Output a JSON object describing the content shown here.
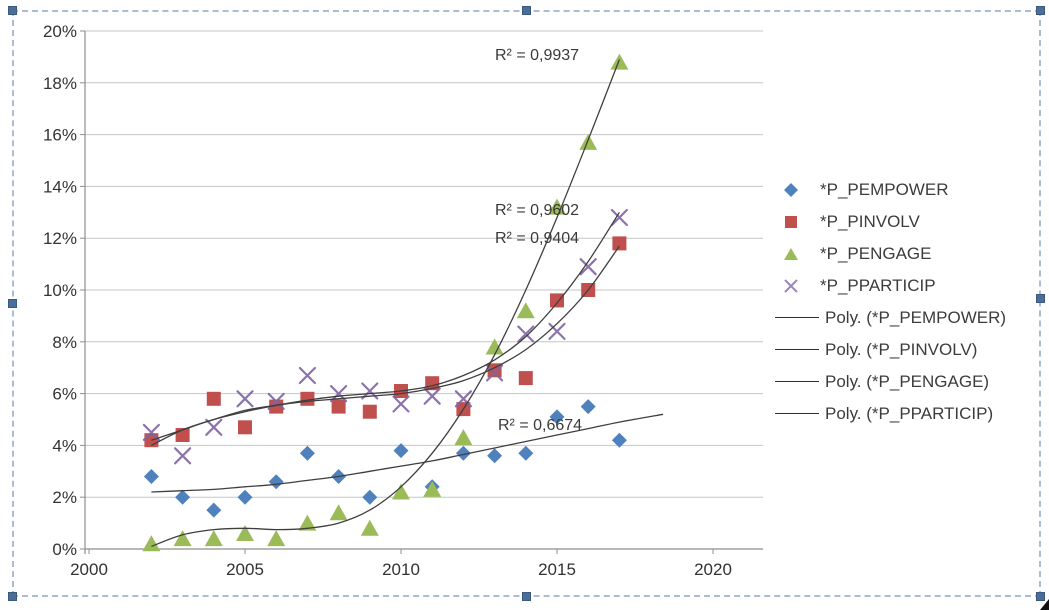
{
  "chart_data": {
    "type": "scatter",
    "title": "",
    "xlabel": "",
    "ylabel": "",
    "grid": true,
    "legend_position": "right",
    "x_axis": {
      "ticks": [
        2000,
        2005,
        2010,
        2015,
        2020
      ],
      "range": [
        2000,
        2021.6
      ]
    },
    "y_axis": {
      "ticks": [
        0,
        2,
        4,
        6,
        8,
        10,
        12,
        14,
        16,
        18,
        20
      ],
      "format": "percent",
      "range": [
        0,
        20
      ]
    },
    "years": [
      2002,
      2003,
      2004,
      2005,
      2006,
      2007,
      2008,
      2009,
      2010,
      2011,
      2012,
      2013,
      2014,
      2015,
      2016,
      2017
    ],
    "series": [
      {
        "key": "pempower",
        "name": "*P_PEMPOWER",
        "marker": "diamond",
        "color": "#4F81BD",
        "values": [
          2.8,
          2.0,
          1.5,
          2.0,
          2.6,
          3.7,
          2.8,
          2.0,
          3.8,
          2.4,
          3.7,
          3.6,
          3.7,
          5.1,
          5.5,
          4.2
        ],
        "trend_label": "Poly. (*P_PEMPOWER)",
        "r2": "R² = 0,6674",
        "trend": [
          [
            2002,
            2.2
          ],
          [
            2003,
            2.25
          ],
          [
            2004,
            2.3
          ],
          [
            2005,
            2.4
          ],
          [
            2006,
            2.5
          ],
          [
            2007,
            2.65
          ],
          [
            2008,
            2.8
          ],
          [
            2009,
            3.0
          ],
          [
            2010,
            3.2
          ],
          [
            2011,
            3.4
          ],
          [
            2012,
            3.65
          ],
          [
            2013,
            3.9
          ],
          [
            2014,
            4.15
          ],
          [
            2015,
            4.4
          ],
          [
            2016,
            4.65
          ],
          [
            2017,
            4.9
          ],
          [
            2018.4,
            5.2
          ]
        ]
      },
      {
        "key": "pinvolv",
        "name": "*P_PINVOLV",
        "marker": "square",
        "color": "#C0504D",
        "values": [
          4.2,
          4.4,
          5.8,
          4.7,
          5.5,
          5.8,
          5.5,
          5.3,
          6.1,
          6.4,
          5.4,
          6.9,
          6.6,
          9.6,
          10.0,
          11.8
        ],
        "trend_label": "Poly. (*P_PINVOLV)",
        "r2": "R² = 0,9404",
        "trend": [
          [
            2002,
            4.0
          ],
          [
            2003,
            4.6
          ],
          [
            2004,
            5.0
          ],
          [
            2005,
            5.35
          ],
          [
            2006,
            5.55
          ],
          [
            2007,
            5.7
          ],
          [
            2008,
            5.8
          ],
          [
            2009,
            5.9
          ],
          [
            2010,
            6.0
          ],
          [
            2011,
            6.2
          ],
          [
            2012,
            6.5
          ],
          [
            2013,
            7.0
          ],
          [
            2014,
            7.7
          ],
          [
            2015,
            8.7
          ],
          [
            2016,
            10.0
          ],
          [
            2017,
            11.7
          ]
        ]
      },
      {
        "key": "pengage",
        "name": "*P_PENGAGE",
        "marker": "triangle",
        "color": "#9BBB59",
        "values": [
          0.2,
          0.4,
          0.4,
          0.6,
          0.4,
          1.0,
          1.4,
          0.8,
          2.2,
          2.3,
          4.3,
          7.8,
          9.2,
          13.2,
          15.7,
          18.8
        ],
        "trend_label": "Poly. (*P_PENGAGE)",
        "r2": "R² = 0,9937",
        "trend": [
          [
            2002,
            0.1
          ],
          [
            2003,
            0.55
          ],
          [
            2004,
            0.75
          ],
          [
            2005,
            0.8
          ],
          [
            2006,
            0.75
          ],
          [
            2007,
            0.8
          ],
          [
            2008,
            1.0
          ],
          [
            2009,
            1.5
          ],
          [
            2010,
            2.4
          ],
          [
            2011,
            3.7
          ],
          [
            2012,
            5.4
          ],
          [
            2013,
            7.5
          ],
          [
            2014,
            10.0
          ],
          [
            2015,
            12.8
          ],
          [
            2016,
            15.8
          ],
          [
            2017,
            18.9
          ]
        ]
      },
      {
        "key": "pparticip",
        "name": "*P_PPARTICIP",
        "marker": "x",
        "color": "#8064A2",
        "values": [
          4.5,
          3.6,
          4.7,
          5.8,
          5.7,
          6.7,
          6.0,
          6.1,
          5.6,
          5.9,
          5.8,
          6.8,
          8.3,
          8.4,
          10.9,
          12.8
        ],
        "trend_label": "Poly. (*P_PPARTICIP)",
        "r2": "R² = 0,9602",
        "trend": [
          [
            2002,
            4.2
          ],
          [
            2003,
            4.6
          ],
          [
            2004,
            5.0
          ],
          [
            2005,
            5.3
          ],
          [
            2006,
            5.55
          ],
          [
            2007,
            5.75
          ],
          [
            2008,
            5.9
          ],
          [
            2009,
            6.0
          ],
          [
            2010,
            6.1
          ],
          [
            2011,
            6.3
          ],
          [
            2012,
            6.7
          ],
          [
            2013,
            7.3
          ],
          [
            2014,
            8.2
          ],
          [
            2015,
            9.5
          ],
          [
            2016,
            11.1
          ],
          [
            2017,
            13.0
          ]
        ]
      }
    ],
    "annotations": [
      {
        "text": "R² = 0,9937",
        "series": "pengage"
      },
      {
        "text": "R² = 0,9602",
        "series": "pparticip"
      },
      {
        "text": "R² = 0,9404",
        "series": "pinvolv"
      },
      {
        "text": "R² = 0,6674",
        "series": "pempower"
      }
    ]
  },
  "legend": {
    "items": [
      {
        "label": "*P_PEMPOWER"
      },
      {
        "label": "*P_PINVOLV"
      },
      {
        "label": "*P_PENGAGE"
      },
      {
        "label": "*P_PPARTICIP"
      },
      {
        "label": "Poly. (*P_PEMPOWER)"
      },
      {
        "label": "Poly. (*P_PINVOLV)"
      },
      {
        "label": "Poly. (*P_PENGAGE)"
      },
      {
        "label": "Poly. (*P_PPARTICIP)"
      }
    ]
  },
  "colors": {
    "pempower": "#4F81BD",
    "pinvolv": "#C0504D",
    "pengage": "#9BBB59",
    "pparticip": "#8064A2",
    "trendline": "#3f3f3f",
    "gridline": "#c6c6c6",
    "axis": "#8e8e8e",
    "selection_border": "#a9bdd4",
    "selection_handle": "#4a6e99"
  }
}
